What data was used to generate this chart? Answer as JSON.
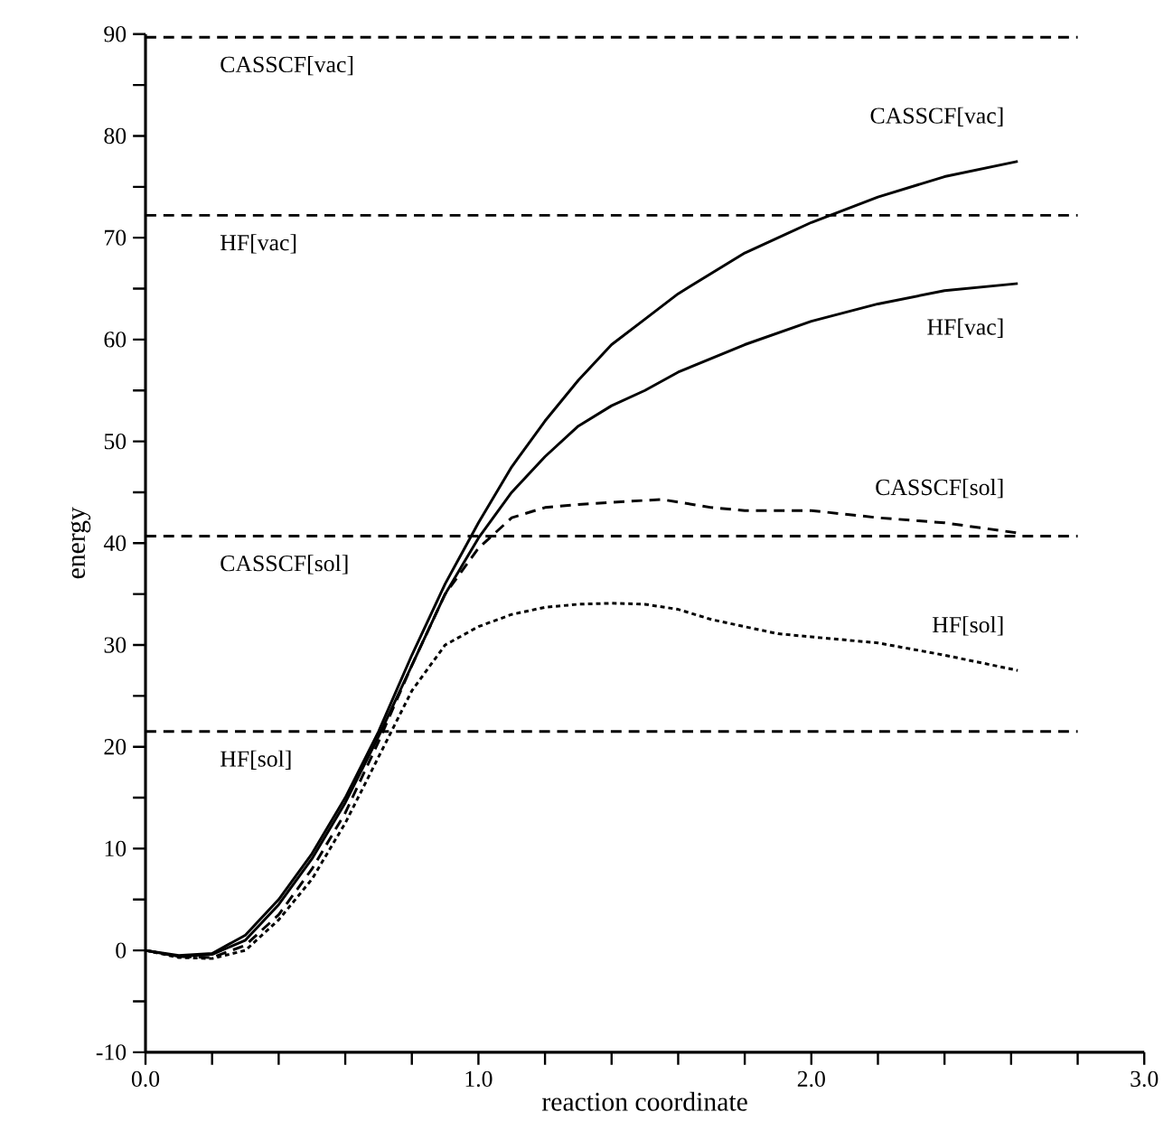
{
  "chart_data": {
    "type": "line",
    "xlabel": "reaction   coordinate",
    "ylabel": "energy",
    "xlim": [
      0,
      3
    ],
    "ylim": [
      -10,
      90
    ],
    "xticks": [
      {
        "value": 0,
        "label": "0.0"
      },
      {
        "value": 1,
        "label": "1.0"
      },
      {
        "value": 2,
        "label": "2.0"
      },
      {
        "value": 3,
        "label": "3.0"
      }
    ],
    "yticks": [
      -10,
      0,
      10,
      20,
      30,
      40,
      50,
      60,
      70,
      80,
      90
    ],
    "grid": false,
    "marker": "none",
    "series": [
      {
        "name": "CASSCF[vac]",
        "color": "#000000",
        "line_style": "solid",
        "x": [
          0,
          0.1,
          0.2,
          0.3,
          0.4,
          0.5,
          0.6,
          0.7,
          0.8,
          0.9,
          1.0,
          1.1,
          1.2,
          1.3,
          1.4,
          1.5,
          1.6,
          1.8,
          2.0,
          2.2,
          2.4,
          2.62
        ],
        "values": [
          0,
          -0.5,
          -0.3,
          1.5,
          5,
          9.5,
          15,
          21.5,
          29,
          36,
          42,
          47.5,
          52,
          56,
          59.5,
          62,
          64.5,
          68.5,
          71.5,
          74,
          76,
          77.5
        ]
      },
      {
        "name": "HF[vac]",
        "color": "#000000",
        "line_style": "solid",
        "x": [
          0,
          0.1,
          0.2,
          0.3,
          0.4,
          0.5,
          0.6,
          0.7,
          0.8,
          0.9,
          1.0,
          1.1,
          1.2,
          1.3,
          1.4,
          1.5,
          1.6,
          1.8,
          2.0,
          2.2,
          2.4,
          2.62
        ],
        "values": [
          0,
          -0.6,
          -0.4,
          1,
          4.5,
          9,
          14.5,
          21,
          28,
          35,
          40.5,
          45,
          48.5,
          51.5,
          53.5,
          55,
          56.8,
          59.5,
          61.8,
          63.5,
          64.8,
          65.5
        ]
      },
      {
        "name": "CASSCF[sol]",
        "color": "#000000",
        "line_style": "dashed",
        "x": [
          0,
          0.1,
          0.2,
          0.3,
          0.4,
          0.5,
          0.6,
          0.7,
          0.8,
          0.9,
          1.0,
          1.1,
          1.2,
          1.3,
          1.4,
          1.55,
          1.7,
          1.8,
          2.0,
          2.2,
          2.4,
          2.62
        ],
        "values": [
          0,
          -0.6,
          -0.7,
          0.5,
          3.5,
          8,
          13.5,
          20.5,
          28,
          35,
          39.5,
          42.5,
          43.5,
          43.8,
          44,
          44.3,
          43.5,
          43.2,
          43.2,
          42.5,
          42,
          41
        ]
      },
      {
        "name": "HF[sol]",
        "color": "#000000",
        "line_style": "dotted",
        "x": [
          0,
          0.1,
          0.2,
          0.3,
          0.4,
          0.5,
          0.6,
          0.7,
          0.8,
          0.9,
          1.0,
          1.1,
          1.2,
          1.3,
          1.4,
          1.5,
          1.6,
          1.7,
          1.8,
          1.9,
          2.0,
          2.2,
          2.4,
          2.62
        ],
        "values": [
          0,
          -0.7,
          -0.8,
          0,
          3,
          7,
          12.5,
          19,
          25.5,
          30,
          31.8,
          33,
          33.7,
          34,
          34.1,
          34,
          33.5,
          32.5,
          31.8,
          31.1,
          30.8,
          30.2,
          29,
          27.5
        ]
      }
    ],
    "ref_lines": [
      {
        "axis": "y",
        "value": 89.7,
        "label": "CASSCF[vac]",
        "line_style": "dashed"
      },
      {
        "axis": "y",
        "value": 72.2,
        "label": "HF[vac]",
        "line_style": "dashed"
      },
      {
        "axis": "y",
        "value": 40.7,
        "label": "CASSCF[sol]",
        "line_style": "dashed"
      },
      {
        "axis": "y",
        "value": 21.5,
        "label": "HF[sol]",
        "line_style": "dashed"
      }
    ]
  }
}
